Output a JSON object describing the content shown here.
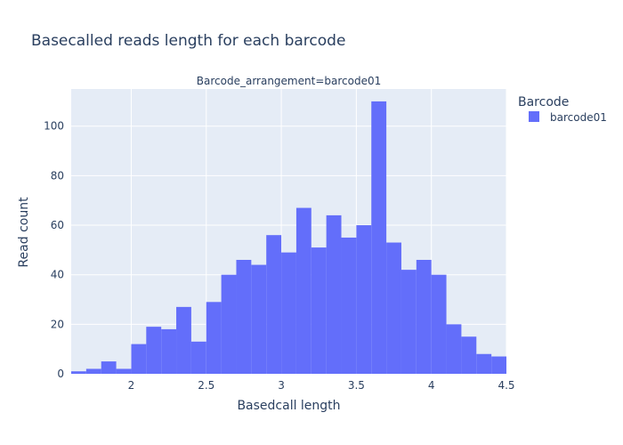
{
  "chart_data": {
    "type": "bar",
    "title": "Basecalled reads length for each barcode",
    "subtitle": "Barcode_arrangement=barcode01",
    "xlabel": "Basedcall length",
    "ylabel": "Read count",
    "legend": {
      "title": "Barcode",
      "placement": "top-right"
    },
    "xlim": [
      1.6,
      4.5
    ],
    "ylim": [
      0,
      115
    ],
    "bin_width": 0.1,
    "x_ticks": [
      "2",
      "2.5",
      "3",
      "3.5",
      "4",
      "4.5"
    ],
    "y_ticks": [
      "0",
      "20",
      "40",
      "60",
      "80",
      "100"
    ],
    "grid": true,
    "series": [
      {
        "name": "barcode01",
        "color": "#636efa",
        "bins": [
          {
            "x0": 1.6,
            "x1": 1.7,
            "y": 1
          },
          {
            "x0": 1.7,
            "x1": 1.8,
            "y": 2
          },
          {
            "x0": 1.8,
            "x1": 1.9,
            "y": 5
          },
          {
            "x0": 1.9,
            "x1": 2.0,
            "y": 2
          },
          {
            "x0": 2.0,
            "x1": 2.1,
            "y": 12
          },
          {
            "x0": 2.1,
            "x1": 2.2,
            "y": 19
          },
          {
            "x0": 2.2,
            "x1": 2.3,
            "y": 18
          },
          {
            "x0": 2.3,
            "x1": 2.4,
            "y": 27
          },
          {
            "x0": 2.4,
            "x1": 2.5,
            "y": 13
          },
          {
            "x0": 2.5,
            "x1": 2.6,
            "y": 29
          },
          {
            "x0": 2.6,
            "x1": 2.7,
            "y": 40
          },
          {
            "x0": 2.7,
            "x1": 2.8,
            "y": 46
          },
          {
            "x0": 2.8,
            "x1": 2.9,
            "y": 44
          },
          {
            "x0": 2.9,
            "x1": 3.0,
            "y": 56
          },
          {
            "x0": 3.0,
            "x1": 3.1,
            "y": 49
          },
          {
            "x0": 3.1,
            "x1": 3.2,
            "y": 67
          },
          {
            "x0": 3.2,
            "x1": 3.3,
            "y": 51
          },
          {
            "x0": 3.3,
            "x1": 3.4,
            "y": 64
          },
          {
            "x0": 3.4,
            "x1": 3.5,
            "y": 55
          },
          {
            "x0": 3.5,
            "x1": 3.6,
            "y": 60
          },
          {
            "x0": 3.6,
            "x1": 3.7,
            "y": 110
          },
          {
            "x0": 3.7,
            "x1": 3.8,
            "y": 53
          },
          {
            "x0": 3.8,
            "x1": 3.9,
            "y": 42
          },
          {
            "x0": 3.9,
            "x1": 4.0,
            "y": 46
          },
          {
            "x0": 4.0,
            "x1": 4.1,
            "y": 40
          },
          {
            "x0": 4.1,
            "x1": 4.2,
            "y": 20
          },
          {
            "x0": 4.2,
            "x1": 4.3,
            "y": 15
          },
          {
            "x0": 4.3,
            "x1": 4.4,
            "y": 8
          },
          {
            "x0": 4.4,
            "x1": 4.5,
            "y": 7
          }
        ]
      }
    ]
  },
  "colors": {
    "plot_background": "#e5ecf6",
    "gridline": "#ffffff",
    "text": "#2a3f5f",
    "bar": "#636efa"
  }
}
